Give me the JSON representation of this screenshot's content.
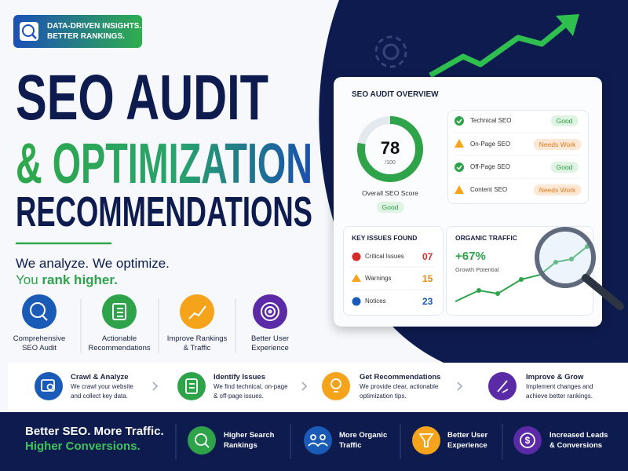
{
  "badge": {
    "lines": [
      "DATA-DRIVEN INSIGHTS.",
      "BETTER RANKINGS."
    ]
  },
  "headline": {
    "lines": [
      "SEO AUDIT",
      "& OPTIMIZATION",
      "RECOMMENDATIONS"
    ]
  },
  "tagline": {
    "line1": "We analyze. We optimize.",
    "line2": [
      "You",
      "rank higher."
    ]
  },
  "features": [
    {
      "label": [
        "Comprehensive",
        "SEO Audit"
      ]
    },
    {
      "label": [
        "Actionable",
        "Recommendations"
      ]
    },
    {
      "label": [
        "Improve Rankings",
        "& Traffic"
      ]
    },
    {
      "label": [
        "Better User",
        "Experience"
      ]
    }
  ],
  "overview": {
    "title": "SEO AUDIT OVERVIEW",
    "score": 78,
    "score_max": 100,
    "score_max_label": "/100",
    "score_caption": "Overall SEO Score",
    "score_status": "Good",
    "checks": [
      {
        "name": "Technical SEO",
        "status": "Good"
      },
      {
        "name": "On-Page SEO",
        "status": "Needs Work"
      },
      {
        "name": "Off-Page SEO",
        "status": "Good"
      },
      {
        "name": "Content SEO",
        "status": "Needs Work"
      }
    ]
  },
  "issues": {
    "title": "KEY ISSUES FOUND",
    "items": [
      {
        "name": "Critical Issues",
        "count": "07"
      },
      {
        "name": "Warnings",
        "count": "15"
      },
      {
        "name": "Notices",
        "count": "23"
      }
    ]
  },
  "traffic": {
    "title": "ORGANIC TRAFFIC",
    "change": "+67%",
    "caption": "Growth Potential"
  },
  "steps": [
    {
      "title": "Crawl & Analyze",
      "desc": [
        "We crawl your website",
        "and collect key data."
      ]
    },
    {
      "title": "Identify Issues",
      "desc": [
        "We find technical, on-page",
        "& off-page issues."
      ]
    },
    {
      "title": "Get Recommendations",
      "desc": [
        "We provide clear, actionable",
        "optimization tips."
      ]
    },
    {
      "title": "Improve & Grow",
      "desc": [
        "Implement changes and",
        "achieve better rankings."
      ]
    }
  ],
  "footer": {
    "slogan": [
      "Better SEO. More Traffic.",
      "Higher Conversions."
    ],
    "benefits": [
      [
        "Higher Search",
        "Rankings"
      ],
      [
        "More Organic",
        "Traffic"
      ],
      [
        "Better User",
        "Experience"
      ],
      [
        "Increased Leads",
        "& Conversions"
      ]
    ]
  }
}
